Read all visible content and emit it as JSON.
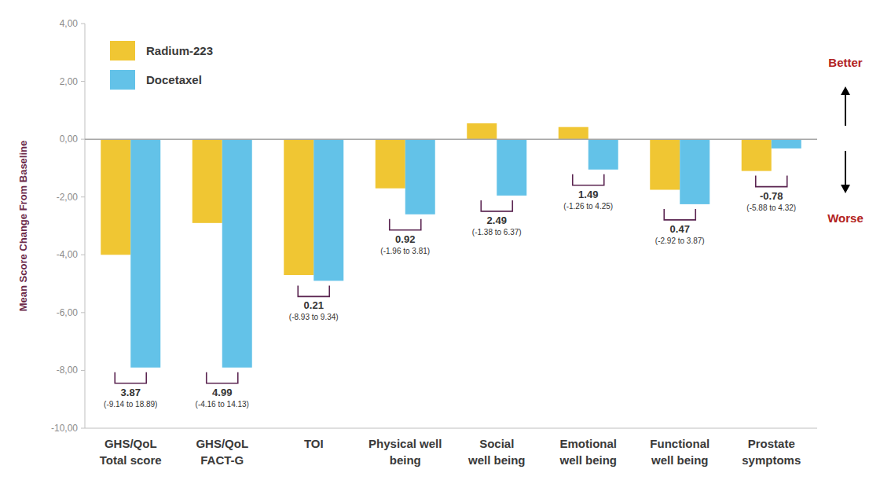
{
  "chart_data": {
    "type": "bar",
    "y_label": "Mean Score Change From Baseline",
    "categories": [
      "GHS/QoL\nTotal score",
      "GHS/QoL\nFACT-G",
      "TOI",
      "Physical well\nbeing",
      "Social\nwell being",
      "Emotional\nwell being",
      "Functional\nwell being",
      "Prostate\nsymptoms"
    ],
    "series": [
      {
        "name": "Radium-223",
        "color": "#f0c633",
        "values": [
          -4.0,
          -2.9,
          -4.7,
          -1.7,
          0.55,
          0.42,
          -1.75,
          -1.1
        ]
      },
      {
        "name": "Docetaxel",
        "color": "#63c2e8",
        "values": [
          -7.9,
          -7.9,
          -4.9,
          -2.6,
          -1.95,
          -1.05,
          -2.25,
          -0.32
        ]
      }
    ],
    "difference_annotations": [
      {
        "text": "3.87",
        "ci": "(-9.14 to 18.89)"
      },
      {
        "text": "4.99",
        "ci": "(-4.16 to 14.13)"
      },
      {
        "text": "0.21",
        "ci": "(-8.93 to 9.34)"
      },
      {
        "text": "0.92",
        "ci": "(-1.96 to 3.81)"
      },
      {
        "text": "2.49",
        "ci": "(-1.38 to 6.37)"
      },
      {
        "text": "1.49",
        "ci": "(-1.26 to 4.25)"
      },
      {
        "text": "0.47",
        "ci": "(-2.92 to 3.87)"
      },
      {
        "text": "-0.78",
        "ci": "(-5.88 to 4.32)"
      }
    ],
    "annotations": [
      "Better",
      "Worse"
    ],
    "ylim": [
      -10,
      4
    ],
    "yticks": [
      {
        "value": 4,
        "label": "4,00"
      },
      {
        "value": 2,
        "label": "2,00"
      },
      {
        "value": 0,
        "label": "0,00"
      },
      {
        "value": -2,
        "label": "-2,00"
      },
      {
        "value": -4,
        "label": "-4,00"
      },
      {
        "value": -6,
        "label": "-6,00"
      },
      {
        "value": -8,
        "label": "-8,00"
      },
      {
        "value": -10,
        "label": "-10,00"
      }
    ],
    "grid": false,
    "legend": "top-left"
  }
}
